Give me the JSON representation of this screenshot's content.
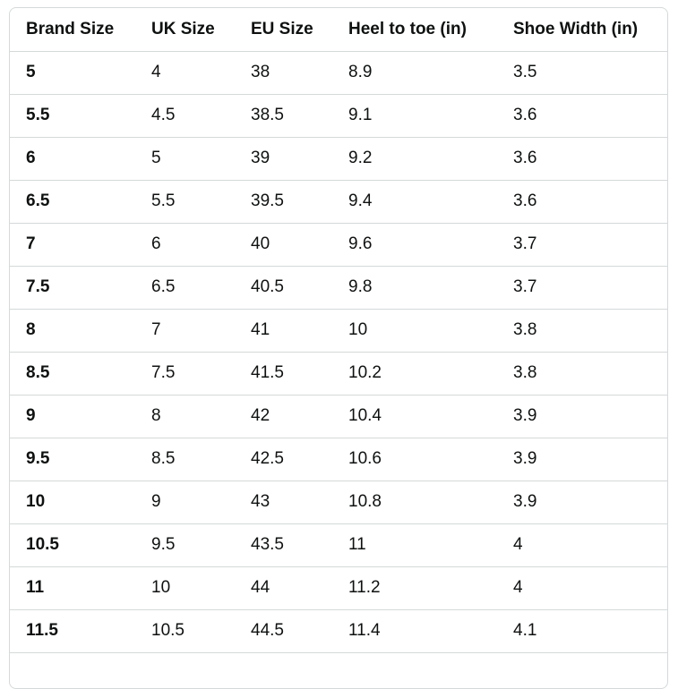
{
  "size_chart": {
    "headers": [
      "Brand Size",
      "UK Size",
      "EU Size",
      "Heel to toe (in)",
      "Shoe Width (in)"
    ],
    "rows": [
      [
        "5",
        "4",
        "38",
        "8.9",
        "3.5"
      ],
      [
        "5.5",
        "4.5",
        "38.5",
        "9.1",
        "3.6"
      ],
      [
        "6",
        "5",
        "39",
        "9.2",
        "3.6"
      ],
      [
        "6.5",
        "5.5",
        "39.5",
        "9.4",
        "3.6"
      ],
      [
        "7",
        "6",
        "40",
        "9.6",
        "3.7"
      ],
      [
        "7.5",
        "6.5",
        "40.5",
        "9.8",
        "3.7"
      ],
      [
        "8",
        "7",
        "41",
        "10",
        "3.8"
      ],
      [
        "8.5",
        "7.5",
        "41.5",
        "10.2",
        "3.8"
      ],
      [
        "9",
        "8",
        "42",
        "10.4",
        "3.9"
      ],
      [
        "9.5",
        "8.5",
        "42.5",
        "10.6",
        "3.9"
      ],
      [
        "10",
        "9",
        "43",
        "10.8",
        "3.9"
      ],
      [
        "10.5",
        "9.5",
        "43.5",
        "11",
        "4"
      ],
      [
        "11",
        "10",
        "44",
        "11.2",
        "4"
      ],
      [
        "11.5",
        "10.5",
        "44.5",
        "11.4",
        "4.1"
      ],
      [
        "",
        "",
        "",
        "",
        ""
      ]
    ]
  }
}
